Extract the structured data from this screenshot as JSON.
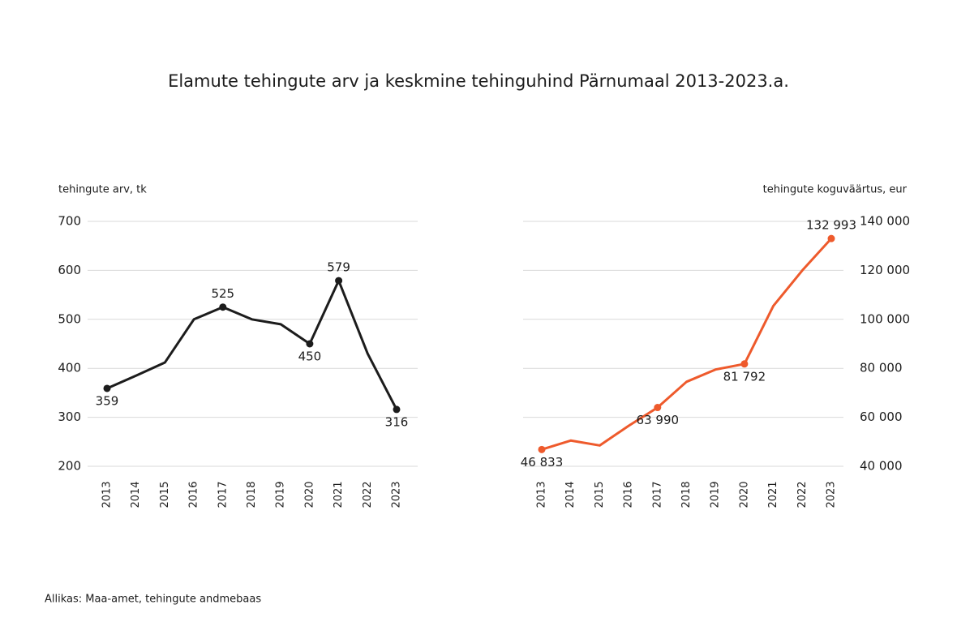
{
  "title": "Elamute tehingute arv ja keskmine tehinguhind Pärnumaal 2013-2023.a.",
  "source": "Allikas: Maa-amet, tehingute andmebaas",
  "chart_data": [
    {
      "type": "line",
      "y_label": "tehingute arv, tk",
      "y_axis_side": "left",
      "categories": [
        "2013",
        "2014",
        "2015",
        "2016",
        "2017",
        "2018",
        "2019",
        "2020",
        "2021",
        "2022",
        "2023"
      ],
      "series": [
        {
          "name": "tehingute arv",
          "color": "#1c1c1c",
          "values": [
            359,
            385,
            412,
            500,
            525,
            500,
            490,
            450,
            579,
            430,
            316
          ],
          "value_labels": [
            "359",
            null,
            null,
            null,
            "525",
            null,
            null,
            "450",
            "579",
            null,
            "316"
          ]
        }
      ],
      "ylim": [
        200,
        700
      ],
      "yticks": [
        200,
        300,
        400,
        500,
        600,
        700
      ],
      "grid": true
    },
    {
      "type": "line",
      "y_label": "tehingute koguväärtus, eur",
      "y_axis_side": "right",
      "categories": [
        "2013",
        "2014",
        "2015",
        "2016",
        "2017",
        "2018",
        "2019",
        "2020",
        "2021",
        "2022",
        "2023"
      ],
      "series": [
        {
          "name": "tehingute koguväärtus",
          "color": "#ee5a2c",
          "values": [
            46833,
            50500,
            48500,
            56500,
            63990,
            74500,
            79500,
            81792,
            105500,
            120000,
            132993
          ],
          "value_labels": [
            "46 833",
            null,
            null,
            null,
            "63 990",
            null,
            null,
            "81 792",
            null,
            null,
            "132 993"
          ]
        }
      ],
      "ylim": [
        40000,
        140000
      ],
      "yticks": [
        {
          "value": 40000,
          "label": "40 000"
        },
        {
          "value": 60000,
          "label": "60 000"
        },
        {
          "value": 80000,
          "label": "80 000"
        },
        {
          "value": 100000,
          "label": "100 000"
        },
        {
          "value": 120000,
          "label": "120 000"
        },
        {
          "value": 140000,
          "label": "140 000"
        }
      ],
      "grid": true
    }
  ]
}
